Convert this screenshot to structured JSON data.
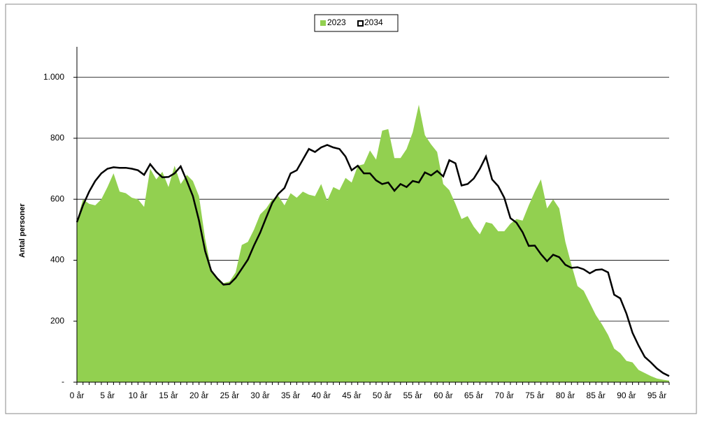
{
  "chart_data": {
    "type": "line",
    "y_label": "Antal personer",
    "categories": [
      "0 år",
      null,
      null,
      null,
      null,
      "5 år",
      null,
      null,
      null,
      null,
      "10 år",
      null,
      null,
      null,
      null,
      "15 år",
      null,
      null,
      null,
      null,
      "20 år",
      null,
      null,
      null,
      null,
      "25 år",
      null,
      null,
      null,
      null,
      "30 år",
      null,
      null,
      null,
      null,
      "35 år",
      null,
      null,
      null,
      null,
      "40 år",
      null,
      null,
      null,
      null,
      "45 år",
      null,
      null,
      null,
      null,
      "50 år",
      null,
      null,
      null,
      null,
      "55 år",
      null,
      null,
      null,
      null,
      "60 år",
      null,
      null,
      null,
      null,
      "65 år",
      null,
      null,
      null,
      null,
      "70 år",
      null,
      null,
      null,
      null,
      "75 år",
      null,
      null,
      null,
      null,
      "80 år",
      null,
      null,
      null,
      null,
      "85 år",
      null,
      null,
      null,
      null,
      "90 år",
      null,
      null,
      null,
      null,
      "95 år",
      null,
      null
    ],
    "series": [
      {
        "name": "2023",
        "style": "area",
        "color": "#92d050",
        "values": [
          530,
          600,
          585,
          580,
          600,
          640,
          685,
          625,
          620,
          605,
          600,
          575,
          700,
          665,
          690,
          640,
          710,
          650,
          680,
          660,
          610,
          470,
          370,
          345,
          325,
          330,
          360,
          450,
          460,
          500,
          550,
          570,
          600,
          610,
          580,
          620,
          605,
          625,
          615,
          610,
          650,
          595,
          640,
          630,
          670,
          655,
          710,
          715,
          760,
          730,
          825,
          830,
          735,
          735,
          765,
          820,
          910,
          810,
          780,
          755,
          650,
          630,
          585,
          535,
          545,
          510,
          485,
          525,
          520,
          495,
          495,
          520,
          535,
          530,
          580,
          625,
          665,
          570,
          600,
          570,
          460,
          385,
          315,
          300,
          260,
          220,
          190,
          155,
          110,
          95,
          70,
          65,
          40,
          30,
          20,
          12,
          8,
          5
        ]
      },
      {
        "name": "2034",
        "style": "line",
        "color": "#000000",
        "values": [
          525,
          580,
          625,
          660,
          685,
          700,
          705,
          703,
          703,
          700,
          695,
          680,
          715,
          690,
          672,
          673,
          685,
          708,
          660,
          610,
          530,
          430,
          365,
          340,
          320,
          322,
          342,
          372,
          402,
          448,
          490,
          540,
          588,
          618,
          637,
          685,
          695,
          730,
          765,
          755,
          770,
          778,
          770,
          765,
          740,
          695,
          710,
          685,
          685,
          662,
          650,
          655,
          628,
          650,
          640,
          660,
          655,
          688,
          678,
          693,
          675,
          728,
          718,
          645,
          650,
          668,
          700,
          740,
          665,
          643,
          605,
          538,
          523,
          492,
          447,
          448,
          420,
          397,
          418,
          410,
          385,
          375,
          377,
          370,
          357,
          368,
          370,
          360,
          287,
          275,
          225,
          162,
          120,
          83,
          65,
          45,
          30,
          20
        ]
      }
    ],
    "ylim": [
      0,
      1100
    ],
    "yticks": [
      {
        "value": 0,
        "label": "-"
      },
      200,
      400,
      600,
      800,
      {
        "value": 1000,
        "label": "1.000"
      }
    ],
    "grid": true,
    "legend": "top"
  }
}
